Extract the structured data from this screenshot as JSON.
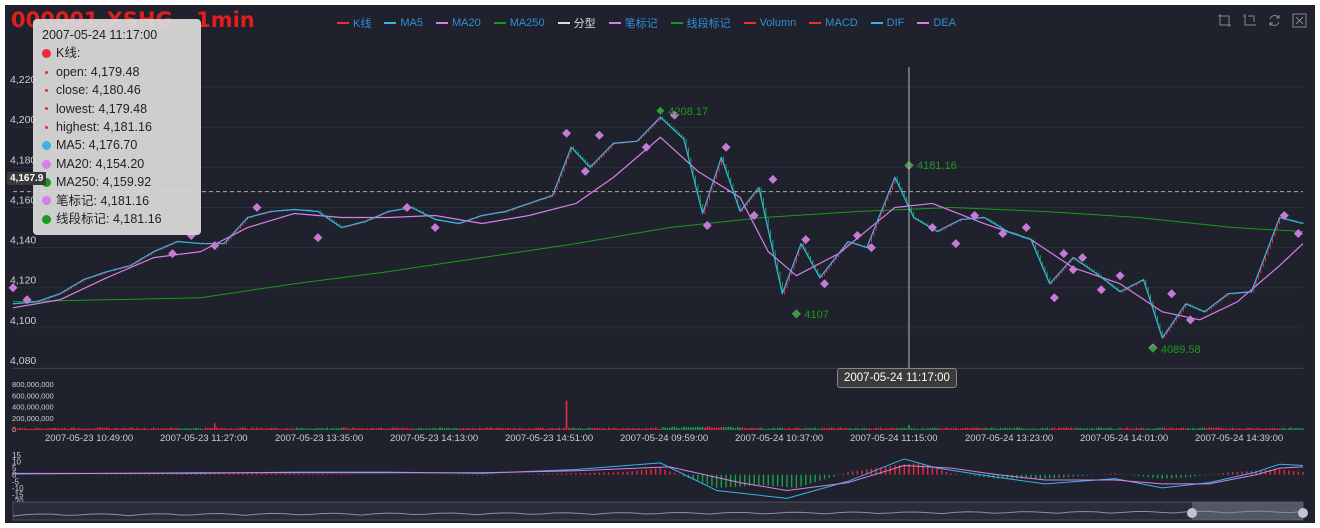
{
  "title": "000001.XSHG - 1min",
  "legend": [
    {
      "name": "K线",
      "color": "#ee2a3c"
    },
    {
      "name": "MA5",
      "color": "#39b3e9"
    },
    {
      "name": "MA20",
      "color": "#d77fe6"
    },
    {
      "name": "MA250",
      "color": "#1a9a1a"
    },
    {
      "name": "分型",
      "color": "#dddddd"
    },
    {
      "name": "笔标记",
      "color": "#d77fe6"
    },
    {
      "name": "线段标记",
      "color": "#1a9a1a"
    },
    {
      "name": "Volumn",
      "color": "#ee2a3c"
    },
    {
      "name": "MACD",
      "color": "#ee2a3c"
    },
    {
      "name": "DIF",
      "color": "#39b3e9"
    },
    {
      "name": "DEA",
      "color": "#d77fe6"
    }
  ],
  "legend_text_color": "#2f8fd6",
  "toolbox": [
    "zoom-rect-icon",
    "zoom-reset-icon",
    "restore-icon",
    "save-image-icon"
  ],
  "tooltip": {
    "time": "2007-05-24 11:17:00",
    "items": [
      {
        "text": "K线:",
        "color": "#ee2a3c",
        "kind": "big"
      },
      {
        "text": "open: 4,179.48",
        "color": "#ee2a3c",
        "kind": "small"
      },
      {
        "text": "close: 4,180.46",
        "color": "#ee2a3c",
        "kind": "small"
      },
      {
        "text": "lowest: 4,179.48",
        "color": "#ee2a3c",
        "kind": "small"
      },
      {
        "text": "highest: 4,181.16",
        "color": "#ee2a3c",
        "kind": "small"
      },
      {
        "text": "MA5: 4,176.70",
        "color": "#39b3e9",
        "kind": "big"
      },
      {
        "text": "MA20: 4,154.20",
        "color": "#d77fe6",
        "kind": "big"
      },
      {
        "text": "MA250: 4,159.92",
        "color": "#1a9a1a",
        "kind": "big"
      },
      {
        "text": "笔标记: 4,181.16",
        "color": "#d77fe6",
        "kind": "big"
      },
      {
        "text": "线段标记: 4,181.16",
        "color": "#1a9a1a",
        "kind": "big"
      }
    ]
  },
  "crosshair": {
    "x_label": "2007-05-24 11:17:00",
    "y_label": "4,167.9"
  },
  "chart_data": {
    "type": "candlestick",
    "price_axis": {
      "ticks": [
        "4,080",
        "4,100",
        "4,120",
        "4,140",
        "4,160",
        "4,180",
        "4,200",
        "4,220"
      ],
      "ylim": [
        4080,
        4230
      ]
    },
    "volume_axis": {
      "ticks": [
        "0",
        "200,000,000",
        "400,000,000",
        "600,000,000",
        "800,000,000"
      ],
      "ylim": [
        0,
        800000000
      ]
    },
    "macd_axis": {
      "ticks": [
        "15",
        "10",
        "5",
        "0",
        "-5",
        "-10",
        "-15",
        "-20"
      ],
      "ylim": [
        -20,
        15
      ]
    },
    "x_ticks": [
      "2007-05-23 10:49:00",
      "2007-05-23 11:27:00",
      "2007-05-23 13:35:00",
      "2007-05-23 14:13:00",
      "2007-05-23 14:51:00",
      "2007-05-24 09:59:00",
      "2007-05-24 10:37:00",
      "2007-05-24 11:15:00",
      "2007-05-24 13:23:00",
      "2007-05-24 14:01:00",
      "2007-05-24 14:39:00"
    ],
    "ma5_path": [
      [
        0,
        4112
      ],
      [
        10,
        4113
      ],
      [
        20,
        4117
      ],
      [
        30,
        4124
      ],
      [
        40,
        4128
      ],
      [
        50,
        4131
      ],
      [
        60,
        4138
      ],
      [
        70,
        4143
      ],
      [
        80,
        4142
      ],
      [
        90,
        4142
      ],
      [
        100,
        4155
      ],
      [
        110,
        4158
      ],
      [
        120,
        4159
      ],
      [
        130,
        4158
      ],
      [
        140,
        4150
      ],
      [
        150,
        4153
      ],
      [
        160,
        4158
      ],
      [
        170,
        4160
      ],
      [
        180,
        4154
      ],
      [
        190,
        4152
      ],
      [
        200,
        4156
      ],
      [
        210,
        4158
      ],
      [
        220,
        4162
      ],
      [
        230,
        4166
      ],
      [
        238,
        4190
      ],
      [
        246,
        4180
      ],
      [
        256,
        4192
      ],
      [
        266,
        4193
      ],
      [
        276,
        4205
      ],
      [
        286,
        4194
      ],
      [
        294,
        4157
      ],
      [
        302,
        4185
      ],
      [
        310,
        4158
      ],
      [
        318,
        4170
      ],
      [
        328,
        4117
      ],
      [
        336,
        4142
      ],
      [
        344,
        4125
      ],
      [
        356,
        4143
      ],
      [
        364,
        4140
      ],
      [
        376,
        4175
      ],
      [
        384,
        4155
      ],
      [
        394,
        4148
      ],
      [
        404,
        4154
      ],
      [
        414,
        4155
      ],
      [
        424,
        4148
      ],
      [
        434,
        4144
      ],
      [
        442,
        4122
      ],
      [
        452,
        4135
      ],
      [
        462,
        4127
      ],
      [
        472,
        4118
      ],
      [
        482,
        4124
      ],
      [
        490,
        4095
      ],
      [
        500,
        4112
      ],
      [
        508,
        4108
      ],
      [
        518,
        4117
      ],
      [
        528,
        4118
      ],
      [
        540,
        4155
      ],
      [
        550,
        4152
      ]
    ],
    "ma20_path": [
      [
        0,
        4110
      ],
      [
        20,
        4114
      ],
      [
        40,
        4125
      ],
      [
        60,
        4135
      ],
      [
        80,
        4138
      ],
      [
        100,
        4150
      ],
      [
        120,
        4157
      ],
      [
        140,
        4155
      ],
      [
        160,
        4155
      ],
      [
        180,
        4156
      ],
      [
        200,
        4152
      ],
      [
        220,
        4156
      ],
      [
        240,
        4162
      ],
      [
        256,
        4175
      ],
      [
        276,
        4195
      ],
      [
        292,
        4178
      ],
      [
        310,
        4165
      ],
      [
        322,
        4138
      ],
      [
        334,
        4126
      ],
      [
        352,
        4137
      ],
      [
        376,
        4160
      ],
      [
        392,
        4162
      ],
      [
        414,
        4152
      ],
      [
        434,
        4144
      ],
      [
        452,
        4130
      ],
      [
        472,
        4122
      ],
      [
        490,
        4108
      ],
      [
        506,
        4104
      ],
      [
        522,
        4113
      ],
      [
        540,
        4131
      ],
      [
        550,
        4142
      ]
    ],
    "ma250_path": [
      [
        0,
        4113
      ],
      [
        40,
        4114
      ],
      [
        80,
        4115
      ],
      [
        120,
        4122
      ],
      [
        160,
        4128
      ],
      [
        200,
        4135
      ],
      [
        240,
        4142
      ],
      [
        280,
        4150
      ],
      [
        320,
        4155
      ],
      [
        360,
        4158
      ],
      [
        400,
        4160
      ],
      [
        440,
        4158
      ],
      [
        480,
        4155
      ],
      [
        520,
        4150
      ],
      [
        550,
        4148
      ]
    ],
    "bi_markers": [
      [
        0,
        4120
      ],
      [
        6,
        4114
      ],
      [
        68,
        4137
      ],
      [
        76,
        4146
      ],
      [
        86,
        4141
      ],
      [
        104,
        4160
      ],
      [
        130,
        4145
      ],
      [
        168,
        4160
      ],
      [
        180,
        4150
      ],
      [
        236,
        4197
      ],
      [
        244,
        4178
      ],
      [
        250,
        4196
      ],
      [
        270,
        4190
      ],
      [
        282,
        4206
      ],
      [
        296,
        4151
      ],
      [
        304,
        4190
      ],
      [
        316,
        4156
      ],
      [
        324,
        4174
      ],
      [
        334,
        4107
      ],
      [
        338,
        4144
      ],
      [
        346,
        4122
      ],
      [
        360,
        4146
      ],
      [
        366,
        4140
      ],
      [
        382,
        4181
      ],
      [
        392,
        4150
      ],
      [
        402,
        4142
      ],
      [
        410,
        4156
      ],
      [
        422,
        4147
      ],
      [
        432,
        4150
      ],
      [
        444,
        4115
      ],
      [
        448,
        4137
      ],
      [
        452,
        4129
      ],
      [
        456,
        4135
      ],
      [
        464,
        4119
      ],
      [
        472,
        4126
      ],
      [
        486,
        4090
      ],
      [
        494,
        4117
      ],
      [
        502,
        4104
      ],
      [
        542,
        4156
      ],
      [
        548,
        4147
      ]
    ],
    "segment_labels": [
      {
        "x": 276,
        "y": 4208.17,
        "label": "4208.17"
      },
      {
        "x": 334,
        "y": 4107,
        "label": "4107"
      },
      {
        "x": 382,
        "y": 4181.16,
        "label": "4181.16"
      },
      {
        "x": 486,
        "y": 4089.58,
        "label": "4089.58"
      }
    ],
    "n_bars": 551,
    "crosshair_bar": 382,
    "volume_spikes": [
      {
        "x": 86,
        "v": 120000000
      },
      {
        "x": 236,
        "v": 520000000
      },
      {
        "x": 382,
        "v": 90000000
      }
    ],
    "dif_path": [
      [
        0,
        0.5
      ],
      [
        40,
        1
      ],
      [
        80,
        1
      ],
      [
        120,
        2
      ],
      [
        160,
        2
      ],
      [
        200,
        1
      ],
      [
        240,
        4
      ],
      [
        276,
        9
      ],
      [
        300,
        -12
      ],
      [
        330,
        -18
      ],
      [
        356,
        -5
      ],
      [
        380,
        12
      ],
      [
        394,
        5
      ],
      [
        420,
        -2
      ],
      [
        440,
        -7
      ],
      [
        470,
        -3
      ],
      [
        490,
        -10
      ],
      [
        510,
        -6
      ],
      [
        530,
        2
      ],
      [
        540,
        8
      ],
      [
        550,
        7
      ]
    ],
    "dea_path": [
      [
        0,
        1
      ],
      [
        40,
        1
      ],
      [
        80,
        1.5
      ],
      [
        120,
        1.5
      ],
      [
        160,
        1.5
      ],
      [
        200,
        1.5
      ],
      [
        240,
        3
      ],
      [
        280,
        6
      ],
      [
        310,
        -6
      ],
      [
        330,
        -12
      ],
      [
        356,
        -6
      ],
      [
        380,
        7
      ],
      [
        400,
        5
      ],
      [
        420,
        0
      ],
      [
        440,
        -4
      ],
      [
        470,
        -4
      ],
      [
        490,
        -7
      ],
      [
        510,
        -7
      ],
      [
        530,
        0
      ],
      [
        540,
        5
      ],
      [
        550,
        6
      ]
    ],
    "macd_hist": [
      [
        0,
        0
      ],
      [
        60,
        0.5
      ],
      [
        100,
        1
      ],
      [
        200,
        -0.5
      ],
      [
        260,
        2
      ],
      [
        276,
        5
      ],
      [
        300,
        -10
      ],
      [
        320,
        -8
      ],
      [
        334,
        -10
      ],
      [
        356,
        2
      ],
      [
        376,
        7
      ],
      [
        386,
        9
      ],
      [
        400,
        1
      ],
      [
        420,
        -3
      ],
      [
        440,
        -3
      ],
      [
        470,
        1
      ],
      [
        490,
        -3
      ],
      [
        500,
        -2
      ],
      [
        520,
        2
      ],
      [
        540,
        4
      ],
      [
        550,
        2
      ]
    ]
  }
}
